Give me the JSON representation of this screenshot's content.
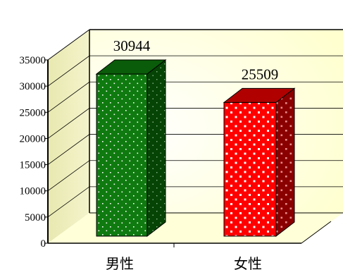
{
  "chart_data": {
    "type": "bar",
    "title": "",
    "xlabel": "",
    "ylabel": "",
    "ylim": [
      0,
      35000
    ],
    "yticks": [
      0,
      5000,
      10000,
      15000,
      20000,
      25000,
      30000,
      35000
    ],
    "categories": [
      "男性",
      "女性"
    ],
    "values": [
      30944,
      25509
    ],
    "data_labels": [
      "30944",
      "25509"
    ],
    "grid": true,
    "bar_style": "3d-dotted",
    "colors": {
      "bars": [
        "#0f7a0f",
        "#ff0000"
      ],
      "bar_dots": [
        "#ffffff",
        "#ffffff"
      ],
      "wall_background": "#fffff0",
      "gridline": "#000000",
      "axis": "#000000"
    }
  }
}
